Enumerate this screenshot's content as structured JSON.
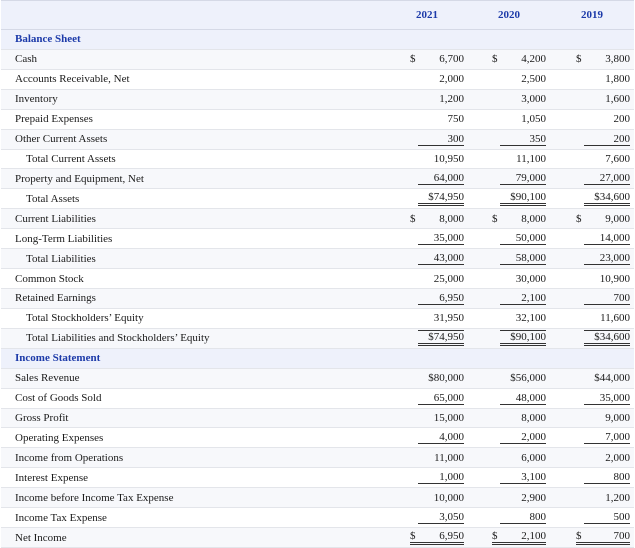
{
  "header": {
    "years": [
      "2021",
      "2020",
      "2019"
    ]
  },
  "rows": [
    {
      "type": "section",
      "label": "Balance Sheet"
    },
    {
      "type": "line",
      "label": "Cash",
      "indent": false,
      "cells": [
        {
          "dollar": "$",
          "value": "6,700",
          "style": ""
        },
        {
          "dollar": "$",
          "value": "4,200",
          "style": ""
        },
        {
          "dollar": "$",
          "value": "3,800",
          "style": ""
        }
      ]
    },
    {
      "type": "line",
      "label": "Accounts Receivable, Net",
      "indent": false,
      "cells": [
        {
          "dollar": "",
          "value": "2,000",
          "style": ""
        },
        {
          "dollar": "",
          "value": "2,500",
          "style": ""
        },
        {
          "dollar": "",
          "value": "1,800",
          "style": ""
        }
      ]
    },
    {
      "type": "line",
      "label": "Inventory",
      "indent": false,
      "cells": [
        {
          "dollar": "",
          "value": "1,200",
          "style": ""
        },
        {
          "dollar": "",
          "value": "3,000",
          "style": ""
        },
        {
          "dollar": "",
          "value": "1,600",
          "style": ""
        }
      ]
    },
    {
      "type": "line",
      "label": "Prepaid Expenses",
      "indent": false,
      "cells": [
        {
          "dollar": "",
          "value": "750",
          "style": ""
        },
        {
          "dollar": "",
          "value": "1,050",
          "style": ""
        },
        {
          "dollar": "",
          "value": "200",
          "style": ""
        }
      ]
    },
    {
      "type": "line",
      "label": "Other Current Assets",
      "indent": false,
      "cells": [
        {
          "dollar": "",
          "value": "300",
          "style": "u-single"
        },
        {
          "dollar": "",
          "value": "350",
          "style": "u-single"
        },
        {
          "dollar": "",
          "value": "200",
          "style": "u-single"
        }
      ]
    },
    {
      "type": "line",
      "label": "Total Current Assets",
      "indent": true,
      "cells": [
        {
          "dollar": "",
          "value": "10,950",
          "style": ""
        },
        {
          "dollar": "",
          "value": "11,100",
          "style": ""
        },
        {
          "dollar": "",
          "value": "7,600",
          "style": ""
        }
      ]
    },
    {
      "type": "line",
      "label": "Property and Equipment, Net",
      "indent": false,
      "cells": [
        {
          "dollar": "",
          "value": "64,000",
          "style": "u-single"
        },
        {
          "dollar": "",
          "value": "79,000",
          "style": "u-single"
        },
        {
          "dollar": "",
          "value": "27,000",
          "style": "u-single"
        }
      ]
    },
    {
      "type": "line",
      "label": "Total Assets",
      "indent": true,
      "cells": [
        {
          "dollar": "",
          "value": "$74,950",
          "style": "u-double"
        },
        {
          "dollar": "",
          "value": "$90,100",
          "style": "u-double"
        },
        {
          "dollar": "",
          "value": "$34,600",
          "style": "u-double"
        }
      ]
    },
    {
      "type": "line",
      "label": "Current Liabilities",
      "indent": false,
      "cells": [
        {
          "dollar": "$",
          "value": "8,000",
          "style": ""
        },
        {
          "dollar": "$",
          "value": "8,000",
          "style": ""
        },
        {
          "dollar": "$",
          "value": "9,000",
          "style": ""
        }
      ]
    },
    {
      "type": "line",
      "label": "Long-Term Liabilities",
      "indent": false,
      "cells": [
        {
          "dollar": "",
          "value": "35,000",
          "style": "u-single"
        },
        {
          "dollar": "",
          "value": "50,000",
          "style": "u-single"
        },
        {
          "dollar": "",
          "value": "14,000",
          "style": "u-single"
        }
      ]
    },
    {
      "type": "line",
      "label": "Total Liabilities",
      "indent": true,
      "cells": [
        {
          "dollar": "",
          "value": "43,000",
          "style": "u-single"
        },
        {
          "dollar": "",
          "value": "58,000",
          "style": "u-single"
        },
        {
          "dollar": "",
          "value": "23,000",
          "style": "u-single"
        }
      ]
    },
    {
      "type": "line",
      "label": "Common Stock",
      "indent": false,
      "cells": [
        {
          "dollar": "",
          "value": "25,000",
          "style": ""
        },
        {
          "dollar": "",
          "value": "30,000",
          "style": ""
        },
        {
          "dollar": "",
          "value": "10,900",
          "style": ""
        }
      ]
    },
    {
      "type": "line",
      "label": "Retained Earnings",
      "indent": false,
      "cells": [
        {
          "dollar": "",
          "value": "6,950",
          "style": "u-single"
        },
        {
          "dollar": "",
          "value": "2,100",
          "style": "u-single"
        },
        {
          "dollar": "",
          "value": "700",
          "style": "u-single"
        }
      ]
    },
    {
      "type": "line",
      "label": "Total Stockholders’ Equity",
      "indent": true,
      "cells": [
        {
          "dollar": "",
          "value": "31,950",
          "style": ""
        },
        {
          "dollar": "",
          "value": "32,100",
          "style": ""
        },
        {
          "dollar": "",
          "value": "11,600",
          "style": ""
        }
      ]
    },
    {
      "type": "line",
      "label": "Total Liabilities and Stockholders’ Equity",
      "indent": true,
      "cells": [
        {
          "dollar": "",
          "value": "$74,950",
          "style": "boxed"
        },
        {
          "dollar": "",
          "value": "$90,100",
          "style": "boxed"
        },
        {
          "dollar": "",
          "value": "$34,600",
          "style": "boxed"
        }
      ]
    },
    {
      "type": "section",
      "label": "Income Statement"
    },
    {
      "type": "line",
      "label": "Sales Revenue",
      "indent": false,
      "cells": [
        {
          "dollar": "",
          "value": "$80,000",
          "style": ""
        },
        {
          "dollar": "",
          "value": "$56,000",
          "style": ""
        },
        {
          "dollar": "",
          "value": "$44,000",
          "style": ""
        }
      ]
    },
    {
      "type": "line",
      "label": "Cost of Goods Sold",
      "indent": false,
      "cells": [
        {
          "dollar": "",
          "value": "65,000",
          "style": "u-single"
        },
        {
          "dollar": "",
          "value": "48,000",
          "style": "u-single"
        },
        {
          "dollar": "",
          "value": "35,000",
          "style": "u-single"
        }
      ]
    },
    {
      "type": "line",
      "label": "Gross Profit",
      "indent": false,
      "cells": [
        {
          "dollar": "",
          "value": "15,000",
          "style": ""
        },
        {
          "dollar": "",
          "value": "8,000",
          "style": ""
        },
        {
          "dollar": "",
          "value": "9,000",
          "style": ""
        }
      ]
    },
    {
      "type": "line",
      "label": "Operating Expenses",
      "indent": false,
      "cells": [
        {
          "dollar": "",
          "value": "4,000",
          "style": "u-single"
        },
        {
          "dollar": "",
          "value": "2,000",
          "style": "u-single"
        },
        {
          "dollar": "",
          "value": "7,000",
          "style": "u-single"
        }
      ]
    },
    {
      "type": "line",
      "label": "Income from Operations",
      "indent": false,
      "cells": [
        {
          "dollar": "",
          "value": "11,000",
          "style": ""
        },
        {
          "dollar": "",
          "value": "6,000",
          "style": ""
        },
        {
          "dollar": "",
          "value": "2,000",
          "style": ""
        }
      ]
    },
    {
      "type": "line",
      "label": "Interest Expense",
      "indent": false,
      "cells": [
        {
          "dollar": "",
          "value": "1,000",
          "style": "u-single"
        },
        {
          "dollar": "",
          "value": "3,100",
          "style": "u-single"
        },
        {
          "dollar": "",
          "value": "800",
          "style": "u-single"
        }
      ]
    },
    {
      "type": "line",
      "label": "Income before Income Tax Expense",
      "indent": false,
      "cells": [
        {
          "dollar": "",
          "value": "10,000",
          "style": ""
        },
        {
          "dollar": "",
          "value": "2,900",
          "style": ""
        },
        {
          "dollar": "",
          "value": "1,200",
          "style": ""
        }
      ]
    },
    {
      "type": "line",
      "label": "Income Tax Expense",
      "indent": false,
      "cells": [
        {
          "dollar": "",
          "value": "3,050",
          "style": "u-single"
        },
        {
          "dollar": "",
          "value": "800",
          "style": "u-single"
        },
        {
          "dollar": "",
          "value": "500",
          "style": "u-single"
        }
      ]
    },
    {
      "type": "line",
      "label": "Net Income",
      "indent": false,
      "cells": [
        {
          "dollar": "$",
          "value": "6,950",
          "style": "u-double"
        },
        {
          "dollar": "$",
          "value": "2,100",
          "style": "u-double"
        },
        {
          "dollar": "$",
          "value": "700",
          "style": "u-double"
        }
      ]
    }
  ],
  "colors": {
    "accent": "#1c3aa9",
    "header_bg": "#eef1fb",
    "row_alt_bg": "#f7f8fb",
    "rule": "#e3e5ea"
  }
}
